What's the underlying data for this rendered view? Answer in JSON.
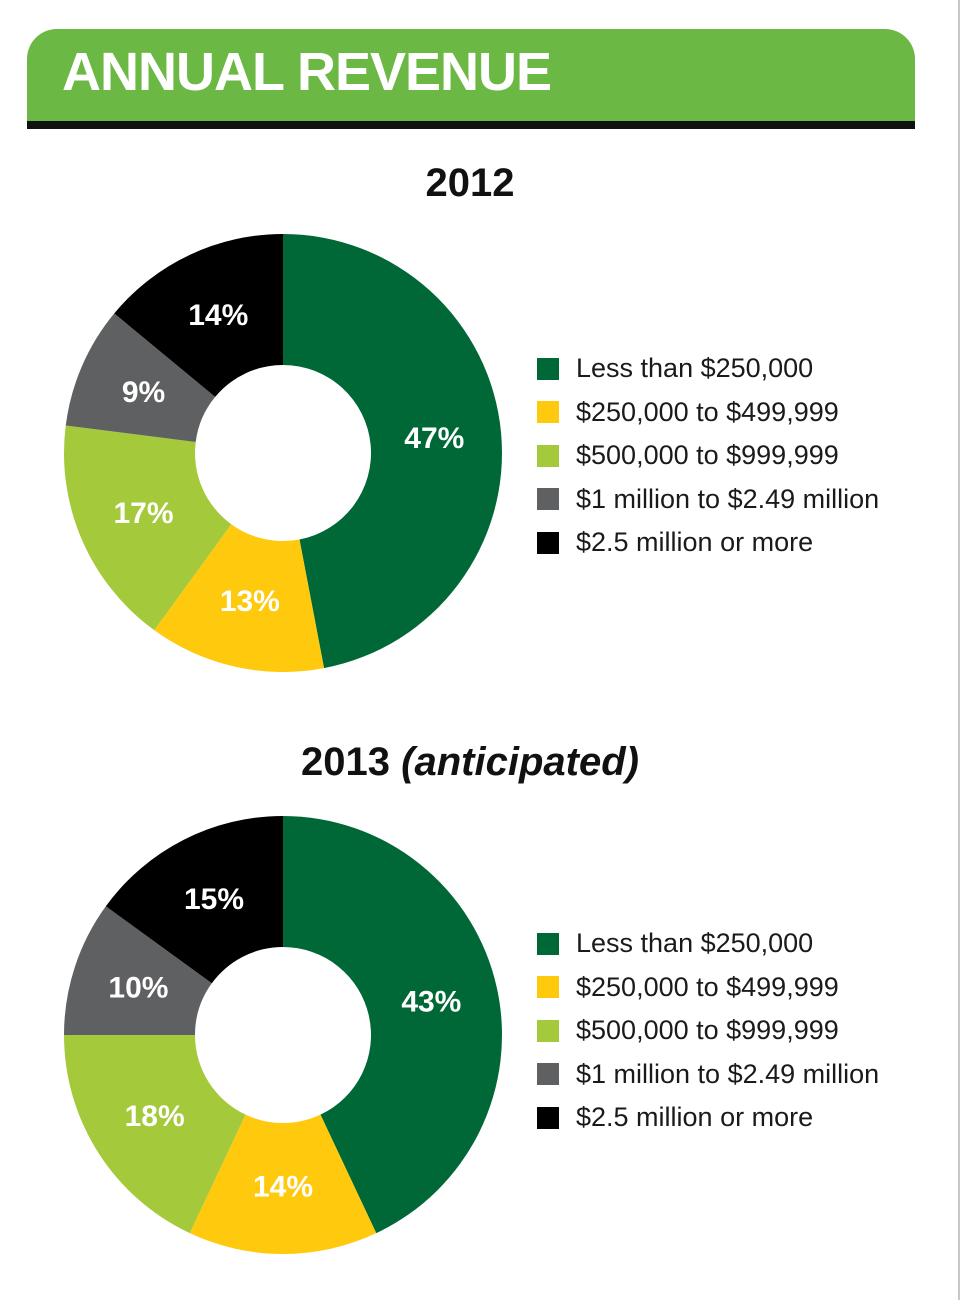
{
  "page": {
    "title": "ANNUAL REVENUE"
  },
  "colors": {
    "banner": "#6cb844",
    "less_than_250k": "#006837",
    "250k_to_499k": "#ffc90e",
    "500k_to_999k": "#a4c93a",
    "1m_to_2_49m": "#5f6062",
    "2_5m_or_more": "#000000"
  },
  "chart_data": [
    {
      "type": "pie",
      "style": "donut",
      "title": "2012",
      "title_suffix": "",
      "categories": [
        "Less than $250,000",
        "$250,000 to $499,999",
        "$500,000 to $999,999",
        "$1 million to $2.49 million",
        "$2.5 million or more"
      ],
      "values": [
        47,
        13,
        17,
        9,
        14
      ],
      "labels": [
        "47%",
        "13%",
        "17%",
        "9%",
        "14%"
      ],
      "colors": [
        "#006837",
        "#ffc90e",
        "#a4c93a",
        "#5f6062",
        "#000000"
      ],
      "legend_position": "right"
    },
    {
      "type": "pie",
      "style": "donut",
      "title": "2013",
      "title_suffix": "(anticipated)",
      "categories": [
        "Less than $250,000",
        "$250,000 to $499,999",
        "$500,000 to $999,999",
        "$1 million to $2.49 million",
        "$2.5 million or more"
      ],
      "values": [
        43,
        14,
        18,
        10,
        15
      ],
      "labels": [
        "43%",
        "14%",
        "18%",
        "10%",
        "15%"
      ],
      "colors": [
        "#006837",
        "#ffc90e",
        "#a4c93a",
        "#5f6062",
        "#000000"
      ],
      "legend_position": "right"
    }
  ]
}
